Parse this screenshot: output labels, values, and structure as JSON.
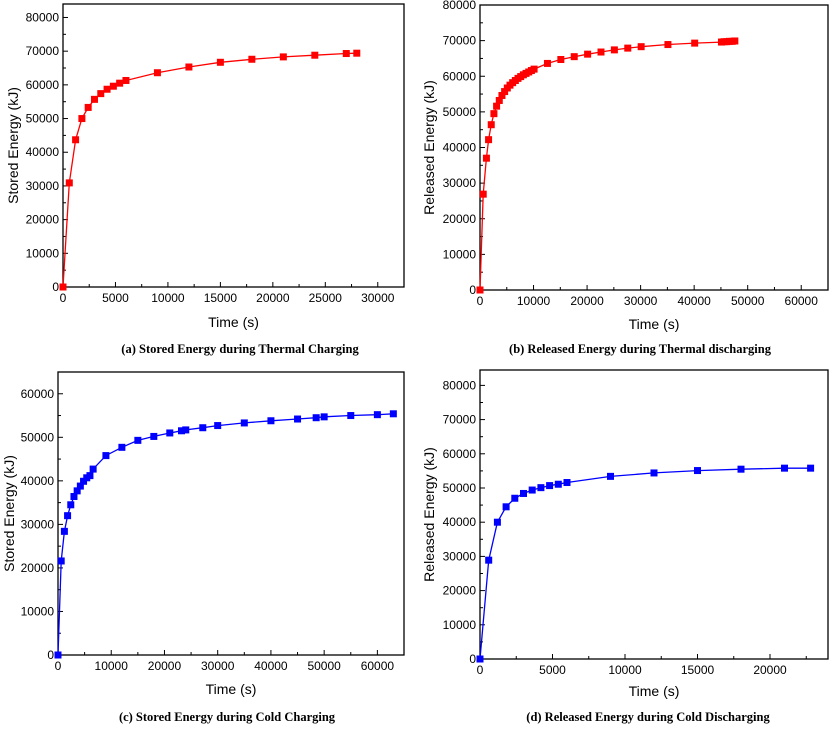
{
  "chart_data": [
    {
      "id": "a",
      "type": "line",
      "caption": "(a) Stored Energy during Thermal Charging",
      "xlabel": "Time (s)",
      "ylabel": "Stored Energy (kJ)",
      "xlim": [
        0,
        32500
      ],
      "ylim": [
        0,
        84000
      ],
      "xticks": [
        0,
        5000,
        10000,
        15000,
        20000,
        25000,
        30000
      ],
      "yticks": [
        0,
        10000,
        20000,
        30000,
        40000,
        50000,
        60000,
        70000,
        80000
      ],
      "color": "#ff0000",
      "marker": "square",
      "grid": false,
      "series": [
        {
          "name": "Stored Energy",
          "x": [
            0,
            600,
            1200,
            1800,
            2400,
            3000,
            3600,
            4200,
            4800,
            5400,
            6000,
            9000,
            12000,
            15000,
            18000,
            21000,
            24000,
            27000,
            28000
          ],
          "y": [
            0,
            30900,
            43700,
            50000,
            53300,
            55700,
            57400,
            58700,
            59600,
            60500,
            61300,
            63600,
            65300,
            66700,
            67600,
            68300,
            68800,
            69300,
            69400
          ]
        }
      ]
    },
    {
      "id": "b",
      "type": "line",
      "caption": "(b) Released Energy during Thermal discharging",
      "xlabel": "Time (s)",
      "ylabel": "Released Energy (kJ)",
      "xlim": [
        0,
        65000
      ],
      "ylim": [
        0,
        80000
      ],
      "xticks": [
        0,
        10000,
        20000,
        30000,
        40000,
        50000,
        60000
      ],
      "yticks": [
        0,
        10000,
        20000,
        30000,
        40000,
        50000,
        60000,
        70000,
        80000
      ],
      "color": "#ff0000",
      "marker": "square",
      "grid": false,
      "series": [
        {
          "name": "Released Energy",
          "x": [
            0,
            600,
            1200,
            1600,
            2100,
            2600,
            3100,
            3600,
            4100,
            4600,
            5100,
            5600,
            6100,
            6600,
            7100,
            7600,
            8100,
            8600,
            9100,
            9600,
            10100,
            12600,
            15100,
            17600,
            20100,
            22600,
            25100,
            27600,
            30100,
            35100,
            40100,
            45100,
            45600,
            46100,
            46600,
            47100,
            47600
          ],
          "y": [
            0,
            26900,
            37000,
            42200,
            46400,
            49500,
            51600,
            53200,
            54600,
            55700,
            56700,
            57500,
            58200,
            58800,
            59400,
            59900,
            60400,
            60800,
            61200,
            61600,
            62000,
            63600,
            64700,
            65500,
            66200,
            66800,
            67400,
            67900,
            68300,
            68900,
            69300,
            69600,
            69700,
            69700,
            69800,
            69800,
            69900
          ]
        }
      ]
    },
    {
      "id": "c",
      "type": "line",
      "caption": "(c) Stored Energy during Cold Charging",
      "xlabel": "Time (s)",
      "ylabel": "Stored Energy (kJ)",
      "xlim": [
        0,
        65000
      ],
      "ylim": [
        0,
        65000
      ],
      "xticks": [
        0,
        10000,
        20000,
        30000,
        40000,
        50000,
        60000
      ],
      "yticks": [
        0,
        10000,
        20000,
        30000,
        40000,
        50000,
        60000
      ],
      "color": "#0000ff",
      "marker": "square",
      "grid": false,
      "series": [
        {
          "name": "Stored Energy",
          "x": [
            0,
            600,
            1200,
            1800,
            2400,
            3000,
            3600,
            4200,
            4800,
            5400,
            6000,
            6600,
            9000,
            12000,
            15000,
            18000,
            21000,
            23200,
            24000,
            27200,
            30000,
            35000,
            40000,
            45000,
            48500,
            50000,
            55000,
            60000,
            63000
          ],
          "y": [
            0,
            21600,
            28400,
            32000,
            34500,
            36400,
            37700,
            38800,
            39900,
            40700,
            41200,
            42700,
            45800,
            47700,
            49300,
            50200,
            51000,
            51500,
            51700,
            52200,
            52700,
            53300,
            53800,
            54200,
            54500,
            54700,
            55000,
            55200,
            55400
          ]
        }
      ]
    },
    {
      "id": "d",
      "type": "line",
      "caption": "(d) Released Energy during Cold Discharging",
      "xlabel": "Time (s)",
      "ylabel": "Released Energy (kJ)",
      "xlim": [
        0,
        24000
      ],
      "ylim": [
        0,
        84500
      ],
      "xticks": [
        0,
        5000,
        10000,
        15000,
        20000
      ],
      "yticks": [
        0,
        10000,
        20000,
        30000,
        40000,
        50000,
        60000,
        70000,
        80000
      ],
      "color": "#0000ff",
      "marker": "square",
      "grid": false,
      "series": [
        {
          "name": "Released Energy",
          "x": [
            0,
            600,
            1200,
            1800,
            2400,
            3000,
            3600,
            4200,
            4800,
            5400,
            6000,
            9000,
            12000,
            15000,
            18000,
            21000,
            22800
          ],
          "y": [
            0,
            28900,
            40000,
            44500,
            47000,
            48400,
            49400,
            50100,
            50700,
            51100,
            51600,
            53400,
            54400,
            55100,
            55500,
            55800,
            55800
          ]
        }
      ]
    }
  ]
}
